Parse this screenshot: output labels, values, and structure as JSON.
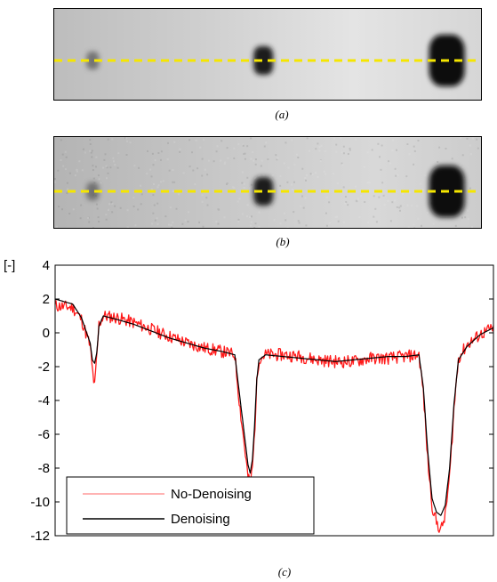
{
  "captions": {
    "a": "(a)",
    "b": "(b)",
    "c": "(c)"
  },
  "images": {
    "a": {
      "name": "radiograph-without-denoising",
      "line_color": "#f5e600",
      "background": "#d4d4d4",
      "spots": [
        {
          "x": 0.09,
          "size": "small"
        },
        {
          "x": 0.49,
          "size": "medium"
        },
        {
          "x": 0.92,
          "size": "large"
        }
      ]
    },
    "b": {
      "name": "radiograph-with-denoising",
      "line_color": "#f5e600",
      "background": "#c6c6c6",
      "spots": [
        {
          "x": 0.09,
          "size": "small"
        },
        {
          "x": 0.49,
          "size": "medium"
        },
        {
          "x": 0.92,
          "size": "large"
        }
      ]
    }
  },
  "chart_data": {
    "type": "line",
    "title": "",
    "xlabel": "",
    "ylabel": "[-]",
    "ylim": [
      -12,
      4
    ],
    "yticks": [
      "4",
      "2",
      "0",
      "-2",
      "-4",
      "-6",
      "-8",
      "-10",
      "-12"
    ],
    "xlim": [
      0,
      100
    ],
    "grid": false,
    "legend_position": "bottom-left",
    "series": [
      {
        "name": "No-Denoising",
        "color": "#ff1a1a",
        "noisy": true,
        "x": [
          0,
          4,
          6,
          8,
          8.5,
          9,
          9.5,
          10,
          11,
          14,
          18,
          22,
          26,
          30,
          34,
          38,
          41,
          42,
          44,
          44.5,
          45,
          45.5,
          46,
          46.5,
          48,
          52,
          56,
          60,
          64,
          68,
          72,
          76,
          80,
          83,
          84,
          85,
          86,
          87,
          88,
          89,
          90,
          91,
          92,
          94,
          97,
          100
        ],
        "y": [
          1.6,
          1.5,
          0.8,
          -0.8,
          -2.2,
          -3.2,
          -1.5,
          0.5,
          1.0,
          0.9,
          0.6,
          0.2,
          -0.2,
          -0.6,
          -0.9,
          -1.1,
          -1.3,
          -4.0,
          -8.5,
          -9.0,
          -8.0,
          -6.0,
          -3.0,
          -1.5,
          -1.3,
          -1.3,
          -1.4,
          -1.6,
          -1.7,
          -1.7,
          -1.5,
          -1.5,
          -1.4,
          -1.3,
          -3.5,
          -7.5,
          -10.2,
          -11.2,
          -11.7,
          -10.8,
          -8.5,
          -4.5,
          -1.5,
          -0.7,
          -0.1,
          0.3
        ]
      },
      {
        "name": "Denoising",
        "color": "#000000",
        "noisy": false,
        "x": [
          0,
          4,
          6,
          8,
          8.5,
          9,
          9.5,
          10,
          11,
          14,
          18,
          22,
          26,
          30,
          34,
          38,
          41,
          42,
          44,
          44.5,
          45,
          45.5,
          46,
          46.5,
          48,
          52,
          56,
          60,
          64,
          68,
          72,
          76,
          80,
          83,
          84,
          85,
          86,
          87,
          88,
          89,
          90,
          91,
          92,
          94,
          97,
          100
        ],
        "y": [
          2.0,
          1.7,
          0.9,
          -0.6,
          -1.6,
          -1.8,
          -1.2,
          0.4,
          1.0,
          0.8,
          0.5,
          0.1,
          -0.3,
          -0.6,
          -0.9,
          -1.1,
          -1.3,
          -3.5,
          -7.8,
          -8.3,
          -7.5,
          -5.5,
          -2.8,
          -1.6,
          -1.3,
          -1.4,
          -1.5,
          -1.6,
          -1.7,
          -1.6,
          -1.5,
          -1.4,
          -1.4,
          -1.3,
          -3.2,
          -7.0,
          -9.8,
          -10.6,
          -10.8,
          -10.2,
          -8.0,
          -4.2,
          -1.6,
          -0.8,
          -0.1,
          0.3
        ]
      }
    ]
  }
}
